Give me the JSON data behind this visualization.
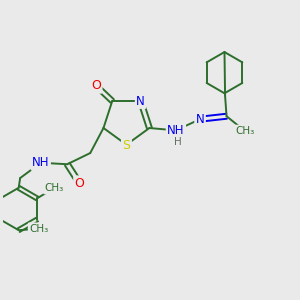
{
  "bg_color": "#eaeaea",
  "atom_colors": {
    "C": "#2d6e2d",
    "N": "#0000ee",
    "O": "#ee0000",
    "S": "#cccc00",
    "H": "#607060"
  },
  "bond_color": "#2d6e2d",
  "fig_w": 3.0,
  "fig_h": 3.0,
  "dpi": 100,
  "xlim": [
    0,
    10
  ],
  "ylim": [
    0,
    10
  ]
}
